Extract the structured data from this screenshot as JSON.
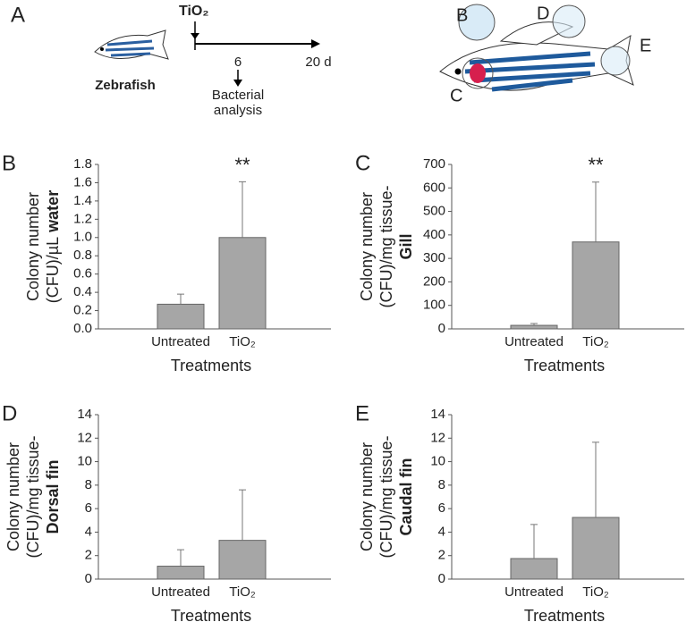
{
  "panel_a": {
    "label": "A",
    "treatment": "TiO₂",
    "fish": "Zebrafish",
    "day_mark": "6",
    "end_day": "20 d",
    "analysis": [
      "Bacterial",
      "analysis"
    ],
    "site_labels": {
      "water": "B",
      "dorsal": "D",
      "caudal": "E",
      "gill": "C"
    }
  },
  "chart_data": [
    {
      "type": "bar",
      "panel": "B",
      "categories": [
        "Untreated",
        "TiO₂"
      ],
      "values": [
        0.27,
        1.0
      ],
      "errors": [
        0.11,
        0.61
      ],
      "value_annotations": [
        null,
        "**"
      ],
      "color": "#a6a6a6",
      "x_label": "Treatments",
      "y_label": [
        {
          "text": "Colony number"
        },
        {
          "text": "(CFU)/µL",
          "bold": "water"
        }
      ],
      "ylim": [
        0,
        1.8
      ],
      "yticks": [
        {
          "value": 0,
          "label": "0.0"
        },
        0.2,
        0.4,
        0.6,
        0.8,
        {
          "value": 1,
          "label": "1.0"
        },
        1.2,
        1.4,
        1.6,
        1.8
      ]
    },
    {
      "type": "bar",
      "panel": "C",
      "categories": [
        "Untreated",
        "TiO₂"
      ],
      "values": [
        15,
        370
      ],
      "errors": [
        8,
        255
      ],
      "value_annotations": [
        null,
        "**"
      ],
      "color": "#a6a6a6",
      "x_label": "Treatments",
      "y_label": [
        {
          "text": "Colony number"
        },
        {
          "text": "(CFU)/mg tissue-"
        },
        {
          "bold": "Gill"
        }
      ],
      "ylim": [
        0,
        700
      ],
      "yticks": [
        0,
        100,
        200,
        300,
        400,
        500,
        600,
        700
      ]
    },
    {
      "type": "bar",
      "panel": "D",
      "categories": [
        "Untreated",
        "TiO₂"
      ],
      "values": [
        1.1,
        3.3
      ],
      "errors": [
        1.4,
        4.3
      ],
      "value_annotations": [
        null,
        null
      ],
      "color": "#a6a6a6",
      "x_label": "Treatments",
      "y_label": [
        {
          "text": "Colony number"
        },
        {
          "text": "(CFU)/mg tissue-"
        },
        {
          "bold": "Dorsal fin"
        }
      ],
      "ylim": [
        0,
        14
      ],
      "yticks": [
        0,
        2,
        4,
        6,
        8,
        10,
        12,
        14
      ]
    },
    {
      "type": "bar",
      "panel": "E",
      "categories": [
        "Untreated",
        "TiO₂"
      ],
      "values": [
        1.75,
        5.25
      ],
      "errors": [
        2.9,
        6.4
      ],
      "value_annotations": [
        null,
        null
      ],
      "color": "#a6a6a6",
      "x_label": "Treatments",
      "y_label": [
        {
          "text": "Colony number"
        },
        {
          "text": "(CFU)/mg tissue-"
        },
        {
          "bold": "Caudal fin"
        }
      ],
      "ylim": [
        0,
        14
      ],
      "yticks": [
        0,
        2,
        4,
        6,
        8,
        10,
        12,
        14
      ]
    }
  ]
}
